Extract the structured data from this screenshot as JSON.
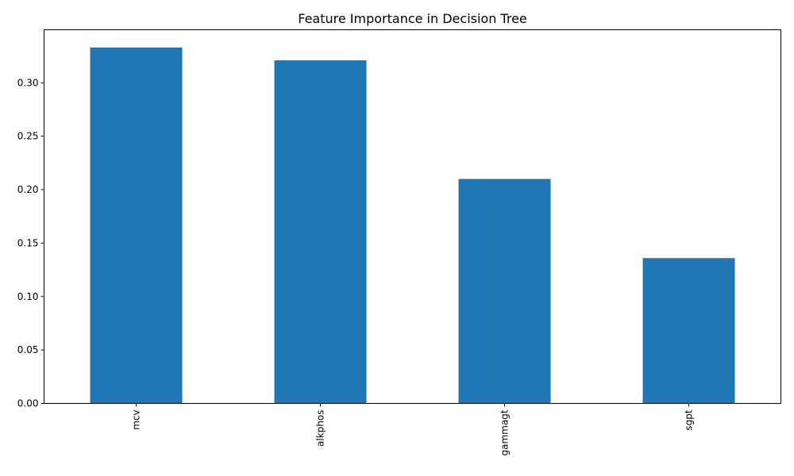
{
  "chart_data": {
    "type": "bar",
    "title": "Feature Importance in Decision Tree",
    "xlabel": "",
    "ylabel": "",
    "categories": [
      "mcv",
      "alkphos",
      "gammagt",
      "sgpt"
    ],
    "values": [
      0.333,
      0.321,
      0.21,
      0.136
    ],
    "ylim": [
      0,
      0.3496
    ],
    "yticks": [
      0.0,
      0.05,
      0.1,
      0.15,
      0.2,
      0.25,
      0.3
    ],
    "ytick_labels": [
      "0.00",
      "0.05",
      "0.10",
      "0.15",
      "0.20",
      "0.25",
      "0.30"
    ],
    "x_tick_rotation": "vertical",
    "grid": false,
    "legend": "none",
    "bar_color": "#1f77b4"
  }
}
